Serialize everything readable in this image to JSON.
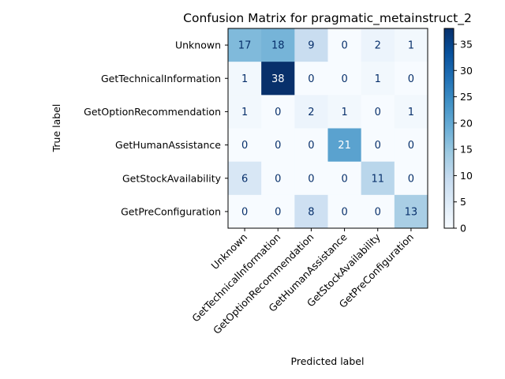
{
  "chart_data": {
    "type": "heatmap",
    "title": "Confusion Matrix for pragmatic_metainstruct_2",
    "xlabel": "Predicted label",
    "ylabel": "True label",
    "labels": [
      "Unknown",
      "GetTechnicalInformation",
      "GetOptionRecommendation",
      "GetHumanAssistance",
      "GetStockAvailability",
      "GetPreConfiguration"
    ],
    "matrix": [
      [
        17,
        18,
        9,
        0,
        2,
        1
      ],
      [
        1,
        38,
        0,
        0,
        1,
        0
      ],
      [
        1,
        0,
        2,
        1,
        0,
        1
      ],
      [
        0,
        0,
        0,
        21,
        0,
        0
      ],
      [
        6,
        0,
        0,
        0,
        11,
        0
      ],
      [
        0,
        0,
        8,
        0,
        0,
        13
      ]
    ],
    "colormap": "Blues",
    "colorbar": {
      "range": [
        0,
        38
      ],
      "ticks": [
        0,
        5,
        10,
        15,
        20,
        25,
        30,
        35
      ]
    },
    "grid": false
  }
}
